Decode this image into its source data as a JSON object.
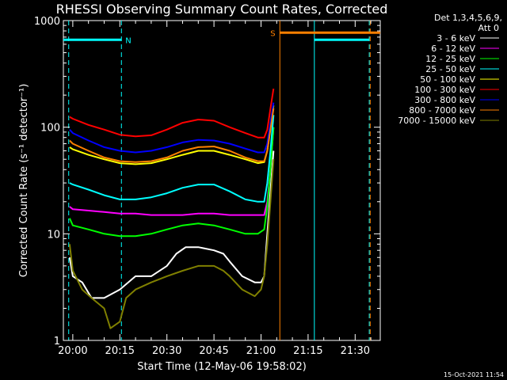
{
  "chart_data": {
    "type": "line",
    "title": "RHESSI Observing Summary Count Rates, Corrected",
    "xlabel": "Start Time (12-May-06 19:58:02)",
    "ylabel": "Corrected Count Rate (s⁻¹ detector⁻¹)",
    "yscale": "log",
    "ylim": [
      1,
      1000
    ],
    "xlim_minutes": [
      -3,
      98
    ],
    "x_ticks": [
      {
        "minute": 0,
        "label": "20:00"
      },
      {
        "minute": 15,
        "label": "20:15"
      },
      {
        "minute": 30,
        "label": "20:30"
      },
      {
        "minute": 45,
        "label": "20:45"
      },
      {
        "minute": 60,
        "label": "21:00"
      },
      {
        "minute": 75,
        "label": "21:15"
      },
      {
        "minute": 90,
        "label": "21:30"
      }
    ],
    "y_ticks": [
      {
        "value": 1,
        "label": "1"
      },
      {
        "value": 10,
        "label": "10"
      },
      {
        "value": 100,
        "label": "100"
      },
      {
        "value": 1000,
        "label": "1000"
      }
    ],
    "legend": {
      "placement": "right",
      "header": [
        "Det 1,3,4,5,6,9,",
        "Att 0"
      ]
    },
    "series": [
      {
        "name": "3 - 6 keV",
        "color": "#ffffff",
        "points": [
          [
            -1,
            6
          ],
          [
            0,
            4
          ],
          [
            3,
            3.5
          ],
          [
            6,
            2.5
          ],
          [
            10,
            2.5
          ],
          [
            15,
            3
          ],
          [
            20,
            4
          ],
          [
            25,
            4
          ],
          [
            30,
            5
          ],
          [
            33,
            6.5
          ],
          [
            36,
            7.5
          ],
          [
            40,
            7.5
          ],
          [
            45,
            7
          ],
          [
            48,
            6.5
          ],
          [
            50,
            5.5
          ],
          [
            54,
            4
          ],
          [
            58,
            3.5
          ],
          [
            60,
            3.5
          ],
          [
            61,
            4
          ],
          [
            62,
            10
          ],
          [
            63,
            25
          ],
          [
            64,
            60
          ]
        ]
      },
      {
        "name": "6 - 12 keV",
        "color": "#ff00ff",
        "points": [
          [
            -1,
            18
          ],
          [
            0,
            17
          ],
          [
            5,
            16.5
          ],
          [
            10,
            16
          ],
          [
            15,
            15.5
          ],
          [
            20,
            15.5
          ],
          [
            25,
            15
          ],
          [
            30,
            15
          ],
          [
            35,
            15
          ],
          [
            40,
            15.5
          ],
          [
            45,
            15.5
          ],
          [
            50,
            15
          ],
          [
            55,
            15
          ],
          [
            59,
            15
          ],
          [
            61,
            15
          ],
          [
            62,
            20
          ],
          [
            63,
            40
          ],
          [
            64,
            100
          ]
        ]
      },
      {
        "name": "12 - 25 keV",
        "color": "#00ff00",
        "points": [
          [
            -1,
            14
          ],
          [
            0,
            12
          ],
          [
            5,
            11
          ],
          [
            10,
            10
          ],
          [
            15,
            9.5
          ],
          [
            20,
            9.5
          ],
          [
            25,
            10
          ],
          [
            30,
            11
          ],
          [
            35,
            12
          ],
          [
            40,
            12.5
          ],
          [
            45,
            12
          ],
          [
            50,
            11
          ],
          [
            55,
            10
          ],
          [
            59,
            10
          ],
          [
            61,
            11
          ],
          [
            62,
            18
          ],
          [
            63,
            40
          ],
          [
            64,
            100
          ]
        ]
      },
      {
        "name": "25 - 50 keV",
        "color": "#00ffff",
        "points": [
          [
            -1,
            30
          ],
          [
            0,
            29
          ],
          [
            5,
            26
          ],
          [
            10,
            23
          ],
          [
            15,
            21
          ],
          [
            20,
            21
          ],
          [
            25,
            22
          ],
          [
            30,
            24
          ],
          [
            35,
            27
          ],
          [
            40,
            29
          ],
          [
            45,
            29
          ],
          [
            50,
            25
          ],
          [
            55,
            21
          ],
          [
            59,
            20
          ],
          [
            61,
            20
          ],
          [
            62,
            30
          ],
          [
            63,
            60
          ],
          [
            64,
            130
          ]
        ]
      },
      {
        "name": "50 - 100 keV",
        "color": "#ffff00",
        "points": [
          [
            -1,
            65
          ],
          [
            0,
            62
          ],
          [
            5,
            55
          ],
          [
            10,
            50
          ],
          [
            15,
            46
          ],
          [
            20,
            45
          ],
          [
            25,
            46
          ],
          [
            30,
            50
          ],
          [
            35,
            55
          ],
          [
            40,
            60
          ],
          [
            45,
            60
          ],
          [
            50,
            55
          ],
          [
            55,
            50
          ],
          [
            59,
            46
          ],
          [
            61,
            47
          ],
          [
            62,
            60
          ],
          [
            63,
            100
          ],
          [
            64,
            160
          ]
        ]
      },
      {
        "name": "100 - 300 keV",
        "color": "#ff0000",
        "points": [
          [
            -1,
            125
          ],
          [
            0,
            120
          ],
          [
            5,
            105
          ],
          [
            10,
            95
          ],
          [
            15,
            85
          ],
          [
            20,
            82
          ],
          [
            25,
            84
          ],
          [
            30,
            95
          ],
          [
            35,
            110
          ],
          [
            40,
            118
          ],
          [
            45,
            115
          ],
          [
            50,
            100
          ],
          [
            55,
            88
          ],
          [
            59,
            80
          ],
          [
            61,
            80
          ],
          [
            62,
            95
          ],
          [
            63,
            150
          ],
          [
            64,
            230
          ]
        ]
      },
      {
        "name": "300 - 800 keV",
        "color": "#0000ff",
        "points": [
          [
            -1,
            95
          ],
          [
            0,
            88
          ],
          [
            5,
            75
          ],
          [
            10,
            65
          ],
          [
            15,
            60
          ],
          [
            20,
            58
          ],
          [
            25,
            60
          ],
          [
            30,
            65
          ],
          [
            35,
            72
          ],
          [
            40,
            76
          ],
          [
            45,
            75
          ],
          [
            50,
            70
          ],
          [
            55,
            63
          ],
          [
            59,
            58
          ],
          [
            61,
            58
          ],
          [
            62,
            70
          ],
          [
            63,
            110
          ],
          [
            64,
            170
          ]
        ]
      },
      {
        "name": "800 - 7000 keV",
        "color": "#ff8000",
        "points": [
          [
            -1,
            75
          ],
          [
            0,
            70
          ],
          [
            5,
            60
          ],
          [
            10,
            52
          ],
          [
            15,
            48
          ],
          [
            20,
            47
          ],
          [
            25,
            48
          ],
          [
            30,
            52
          ],
          [
            35,
            60
          ],
          [
            40,
            65
          ],
          [
            45,
            66
          ],
          [
            50,
            60
          ],
          [
            55,
            52
          ],
          [
            59,
            48
          ],
          [
            61,
            48
          ],
          [
            62,
            60
          ],
          [
            63,
            95
          ],
          [
            64,
            150
          ]
        ]
      },
      {
        "name": "7000 - 15000 keV",
        "color": "#808000",
        "points": [
          [
            -1,
            8
          ],
          [
            0,
            4.5
          ],
          [
            3,
            3
          ],
          [
            6,
            2.5
          ],
          [
            10,
            2
          ],
          [
            12,
            1.3
          ],
          [
            15,
            1.5
          ],
          [
            17,
            2.5
          ],
          [
            20,
            3
          ],
          [
            25,
            3.5
          ],
          [
            30,
            4
          ],
          [
            35,
            4.5
          ],
          [
            40,
            5
          ],
          [
            45,
            5
          ],
          [
            48,
            4.5
          ],
          [
            50,
            4
          ],
          [
            54,
            3
          ],
          [
            58,
            2.6
          ],
          [
            60,
            3
          ],
          [
            61,
            4
          ],
          [
            62,
            8
          ],
          [
            63,
            20
          ],
          [
            64,
            50
          ]
        ]
      }
    ],
    "annotations": {
      "attenuator_segments": [
        {
          "label": "N",
          "color": "#00ffff",
          "x_start": -3,
          "x_end": 15.5,
          "y": 660
        },
        {
          "label": "S",
          "color": "#ff8000",
          "x_start": 66,
          "x_end": 98,
          "y": 770
        },
        {
          "label": "",
          "color": "#00ffff",
          "x_start": 77,
          "x_end": 94.5,
          "y": 660
        }
      ],
      "vertical_lines": [
        {
          "x": -1.3,
          "color": "#00ffff",
          "style": "dashed"
        },
        {
          "x": 15.5,
          "color": "#00ffff",
          "style": "dashed"
        },
        {
          "x": 66,
          "color": "#ff8000",
          "style": "solid"
        },
        {
          "x": 77,
          "color": "#00ffff",
          "style": "solid"
        },
        {
          "x": 94.5,
          "color": "#00ffff",
          "style": "dashed"
        },
        {
          "x": 94.8,
          "color": "#ff8000",
          "style": "dashed"
        }
      ]
    },
    "footer_timestamp": "15-Oct-2021 11:54"
  }
}
